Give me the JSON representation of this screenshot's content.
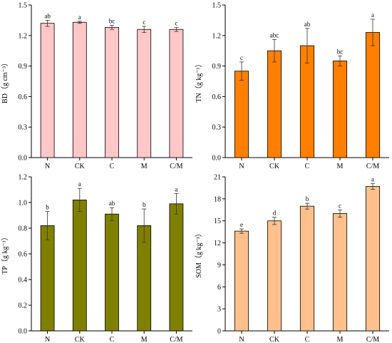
{
  "chart_data": [
    {
      "type": "bar",
      "categories": [
        "N",
        "CK",
        "C",
        "M",
        "C/M"
      ],
      "values": [
        1.32,
        1.33,
        1.28,
        1.26,
        1.26
      ],
      "errors": [
        0.03,
        0.01,
        0.02,
        0.03,
        0.02
      ],
      "significance": [
        "ab",
        "a",
        "bc",
        "c",
        "c"
      ],
      "ylabel": "BD（g cm⁻³）",
      "ylim": [
        0,
        1.5
      ],
      "yticks": [
        "0.0",
        "0.3",
        "0.6",
        "0.9",
        "1.2",
        "1.5"
      ],
      "bar_color": "#ffc7c7",
      "grid": false
    },
    {
      "type": "bar",
      "categories": [
        "N",
        "CK",
        "C",
        "M",
        "C/M"
      ],
      "values": [
        0.85,
        1.05,
        1.1,
        0.95,
        1.23
      ],
      "errors": [
        0.09,
        0.11,
        0.17,
        0.05,
        0.13
      ],
      "significance": [
        "c",
        "abc",
        "ab",
        "bc",
        "a"
      ],
      "ylabel": "TN（g kg⁻¹）",
      "ylim": [
        0,
        1.5
      ],
      "yticks": [
        "0.0",
        "0.3",
        "0.6",
        "0.9",
        "1.2",
        "1.5"
      ],
      "bar_color": "#ff8000",
      "grid": false
    },
    {
      "type": "bar",
      "categories": [
        "N",
        "CK",
        "C",
        "M",
        "C/M"
      ],
      "values": [
        0.82,
        1.02,
        0.91,
        0.82,
        0.99
      ],
      "errors": [
        0.11,
        0.09,
        0.05,
        0.13,
        0.08
      ],
      "significance": [
        "b",
        "a",
        "ab",
        "b",
        "a"
      ],
      "ylabel": "TP（g kg⁻¹）",
      "ylim": [
        0,
        1.2
      ],
      "yticks": [
        "0.0",
        "0.2",
        "0.4",
        "0.6",
        "0.8",
        "1.0",
        "1.2"
      ],
      "bar_color": "#808000",
      "grid": false
    },
    {
      "type": "bar",
      "categories": [
        "N",
        "CK",
        "C",
        "M",
        "C/M"
      ],
      "values": [
        13.6,
        15.0,
        17.0,
        16.0,
        19.7
      ],
      "errors": [
        0.3,
        0.5,
        0.4,
        0.5,
        0.4
      ],
      "significance": [
        "e",
        "d",
        "b",
        "c",
        "a"
      ],
      "ylabel": "SOM（g kg⁻¹）",
      "ylim": [
        0,
        21
      ],
      "yticks": [
        "0",
        "3",
        "6",
        "9",
        "12",
        "15",
        "18",
        "21"
      ],
      "bar_color": "#ffc08c",
      "grid": false
    }
  ]
}
